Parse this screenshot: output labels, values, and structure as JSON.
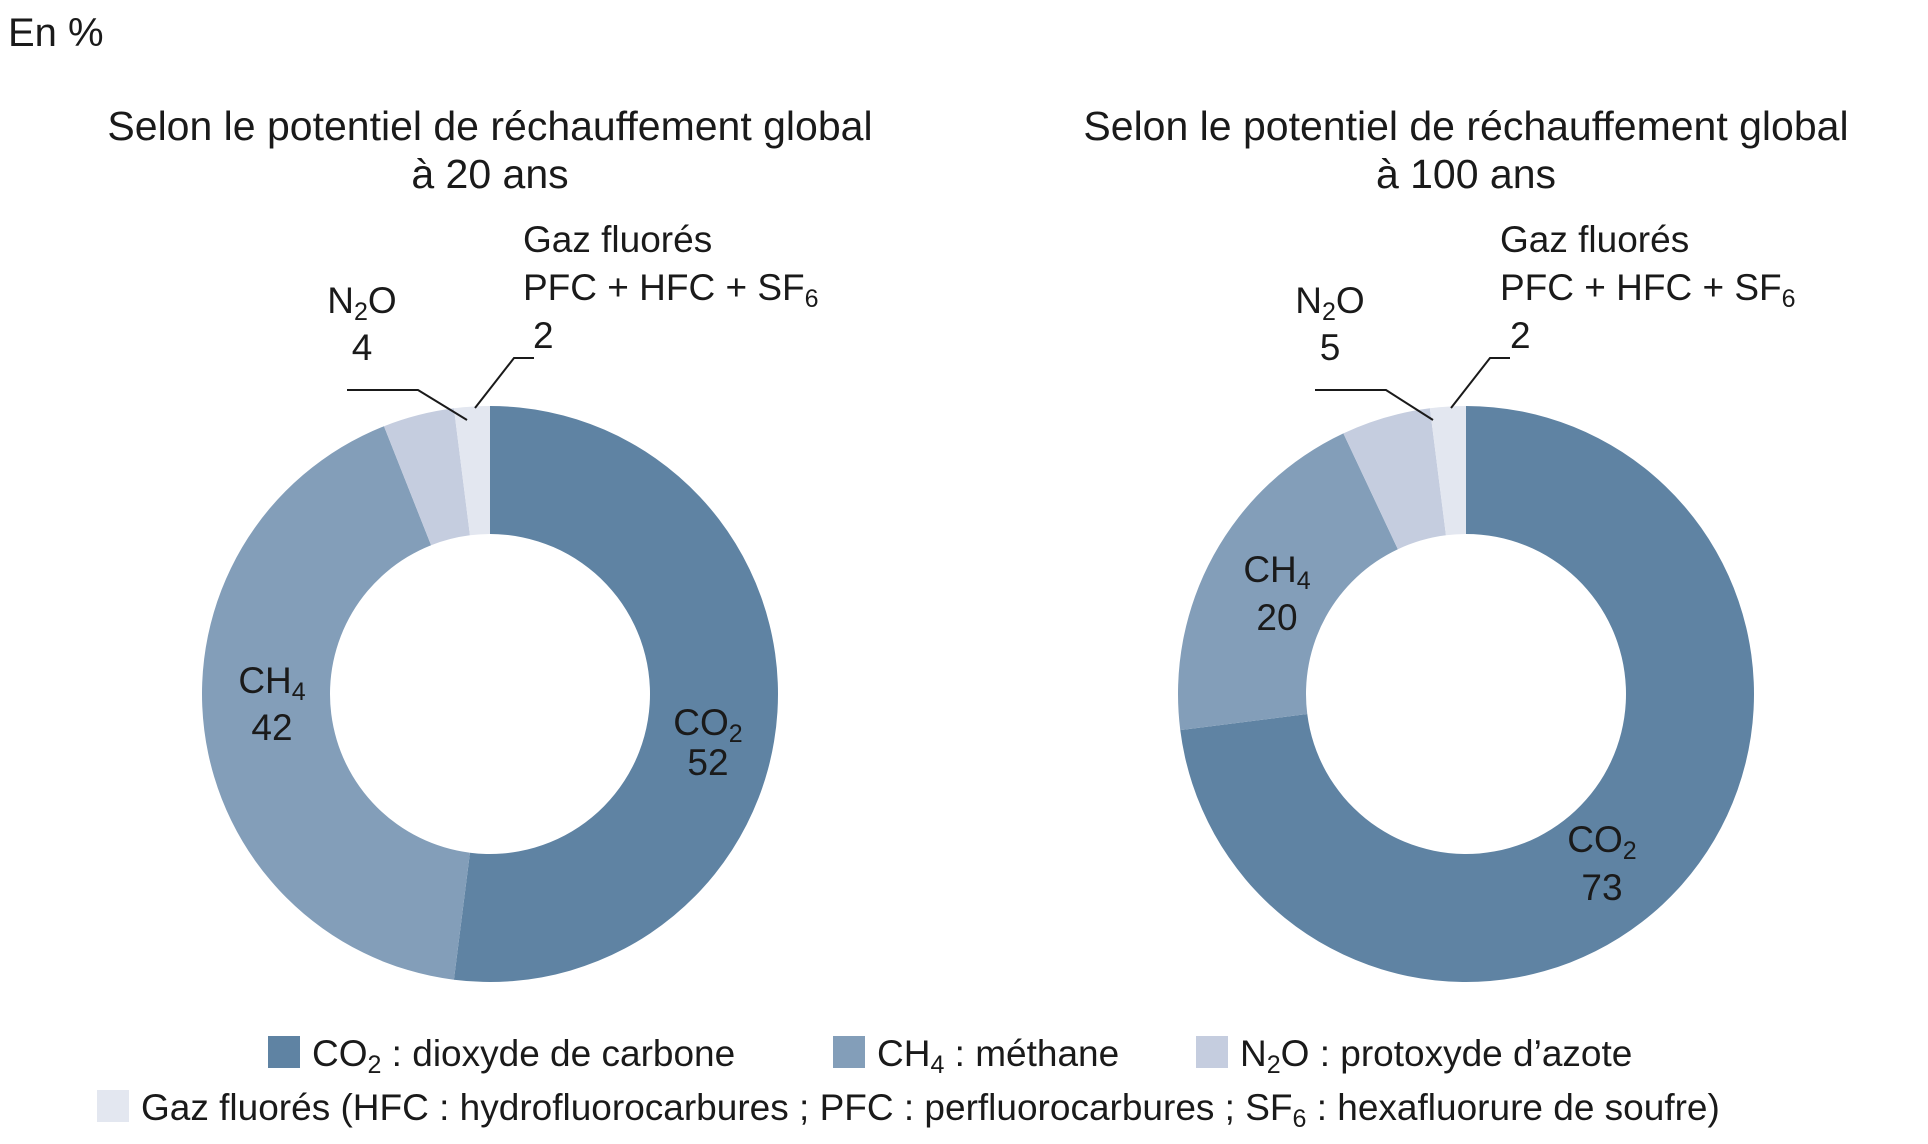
{
  "unit_label": "En %",
  "chart_data": [
    {
      "type": "pie",
      "title": "Selon le potentiel de réchauffement global",
      "subtitle": "à 20 ans",
      "slices": [
        {
          "key": "co2",
          "base": "CO",
          "sub": "2",
          "value": 52
        },
        {
          "key": "ch4",
          "base": "CH",
          "sub": "4",
          "value": 42
        },
        {
          "key": "n2o",
          "base": "N",
          "sub": "2",
          "base2": "O",
          "value": 4
        },
        {
          "key": "gaz",
          "line1": "Gaz fluorés",
          "line2_base": "PFC + HFC + SF",
          "line2_sub": "6",
          "value": 2
        }
      ]
    },
    {
      "type": "pie",
      "title": "Selon le potentiel de réchauffement global",
      "subtitle": "à 100 ans",
      "slices": [
        {
          "key": "co2",
          "base": "CO",
          "sub": "2",
          "value": 73
        },
        {
          "key": "ch4",
          "base": "CH",
          "sub": "4",
          "value": 20
        },
        {
          "key": "n2o",
          "base": "N",
          "sub": "2",
          "base2": "O",
          "value": 5
        },
        {
          "key": "gaz",
          "line1": "Gaz fluorés",
          "line2_base": "PFC + HFC + SF",
          "line2_sub": "6",
          "value": 2
        }
      ]
    }
  ],
  "colors": {
    "co2": "#5f83a3",
    "ch4": "#839eb9",
    "n2o": "#c5cddf",
    "gaz": "#e3e7f0"
  },
  "legend": [
    {
      "key": "co2",
      "base": "CO",
      "sub": "2",
      "text": " : dioxyde de carbone"
    },
    {
      "key": "ch4",
      "base": "CH",
      "sub": "4",
      "text": " : méthane"
    },
    {
      "key": "n2o",
      "base": "N",
      "sub": "2",
      "text": "O : protoxyde d’azote"
    },
    {
      "key": "gaz",
      "base": "Gaz fluorés (HFC : hydrofluorocarbures ; PFC : perfluorocarbures ; SF",
      "sub": "6",
      "text": " : hexafluorure de soufre)"
    }
  ]
}
